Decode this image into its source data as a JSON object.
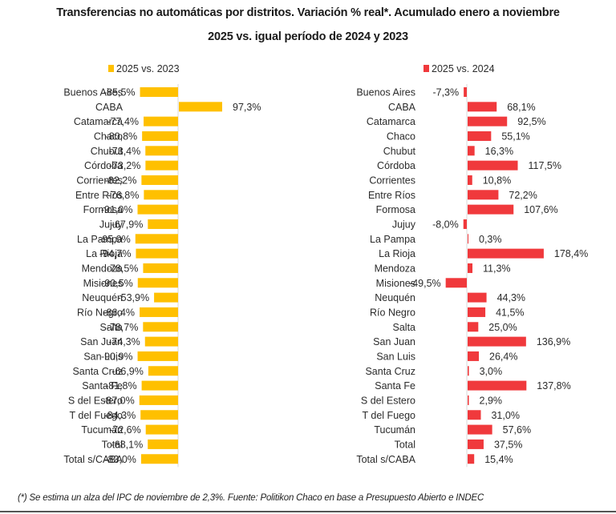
{
  "header": {
    "title_line1": "Transferencias no automáticas por distritos. Variación % real*. Acumulado enero a noviembre",
    "title_line2": "2025 vs. igual período de 2024 y 2023"
  },
  "footnote": "(*) Se estima un alza del IPC de noviembre de 2,3%. Fuente: Politikon Chaco en base a Presupuesto Abierto e INDEC",
  "chart_data": [
    {
      "type": "bar",
      "orientation": "horizontal",
      "title": "Transferencias no automáticas por distritos. Variación % real*. Acumulado enero a noviembre 2025 vs. igual período de 2024 y 2023",
      "legend": "2025 vs. 2023",
      "legend_placement": "top",
      "color": "#FFC000",
      "grid": false,
      "categories": [
        "Buenos Aires",
        "CABA",
        "Catamarca",
        "Chaco",
        "Chubut",
        "Córdoba",
        "Corrientes",
        "Entre Ríos",
        "Formosa",
        "Jujuy",
        "La Pampa",
        "La Rioja",
        "Mendoza",
        "Misiones",
        "Neuquén",
        "Río Negro",
        "Salta",
        "San Juan",
        "San Luis",
        "Santa Cruz",
        "Santa Fe",
        "S del Estero",
        "T del Fuego",
        "Tucumán",
        "Total",
        "Total s/CABA"
      ],
      "values": [
        -85.5,
        97.3,
        -77.4,
        -80.8,
        -73.4,
        -73.2,
        -82.2,
        -76.8,
        -91.0,
        -67.9,
        -95.9,
        -94.7,
        -78.5,
        -90.5,
        -53.9,
        -86.4,
        -78.7,
        -74.3,
        -90.9,
        -66.9,
        -81.8,
        -87.0,
        -84.3,
        -72.6,
        -68.1,
        -83.0
      ],
      "labels": [
        "-85,5%",
        "97,3%",
        "-77,4%",
        "-80,8%",
        "-73,4%",
        "-73,2%",
        "-82,2%",
        "-76,8%",
        "-91,0%",
        "-67,9%",
        "-95,9%",
        "-94,7%",
        "-78,5%",
        "-90,5%",
        "-53,9%",
        "-86,4%",
        "-78,7%",
        "-74,3%",
        "-90,9%",
        "-66,9%",
        "-81,8%",
        "-87,0%",
        "-84,3%",
        "-72,6%",
        "-68,1%",
        "-83,0%"
      ],
      "xlabel": "",
      "ylabel": ""
    },
    {
      "type": "bar",
      "orientation": "horizontal",
      "legend": "2025 vs. 2024",
      "legend_placement": "top",
      "color": "#F0393C",
      "grid": false,
      "categories": [
        "Buenos Aires",
        "CABA",
        "Catamarca",
        "Chaco",
        "Chubut",
        "Córdoba",
        "Corrientes",
        "Entre Ríos",
        "Formosa",
        "Jujuy",
        "La Pampa",
        "La Rioja",
        "Mendoza",
        "Misiones",
        "Neuquén",
        "Río Negro",
        "Salta",
        "San Juan",
        "San Luis",
        "Santa Cruz",
        "Santa Fe",
        "S del Estero",
        "T del Fuego",
        "Tucumán",
        "Total",
        "Total s/CABA"
      ],
      "values": [
        -7.3,
        68.1,
        92.5,
        55.1,
        16.3,
        117.5,
        10.8,
        72.2,
        107.6,
        -8.0,
        0.3,
        178.4,
        11.3,
        -49.5,
        44.3,
        41.5,
        25.0,
        136.9,
        26.4,
        3.0,
        137.8,
        2.9,
        31.0,
        57.6,
        37.5,
        15.4
      ],
      "labels": [
        "-7,3%",
        "68,1%",
        "92,5%",
        "55,1%",
        "16,3%",
        "117,5%",
        "10,8%",
        "72,2%",
        "107,6%",
        "-8,0%",
        "0,3%",
        "178,4%",
        "11,3%",
        "-49,5%",
        "44,3%",
        "41,5%",
        "25,0%",
        "136,9%",
        "26,4%",
        "3,0%",
        "137,8%",
        "2,9%",
        "31,0%",
        "57,6%",
        "37,5%",
        "15,4%"
      ],
      "xlabel": "",
      "ylabel": ""
    }
  ]
}
